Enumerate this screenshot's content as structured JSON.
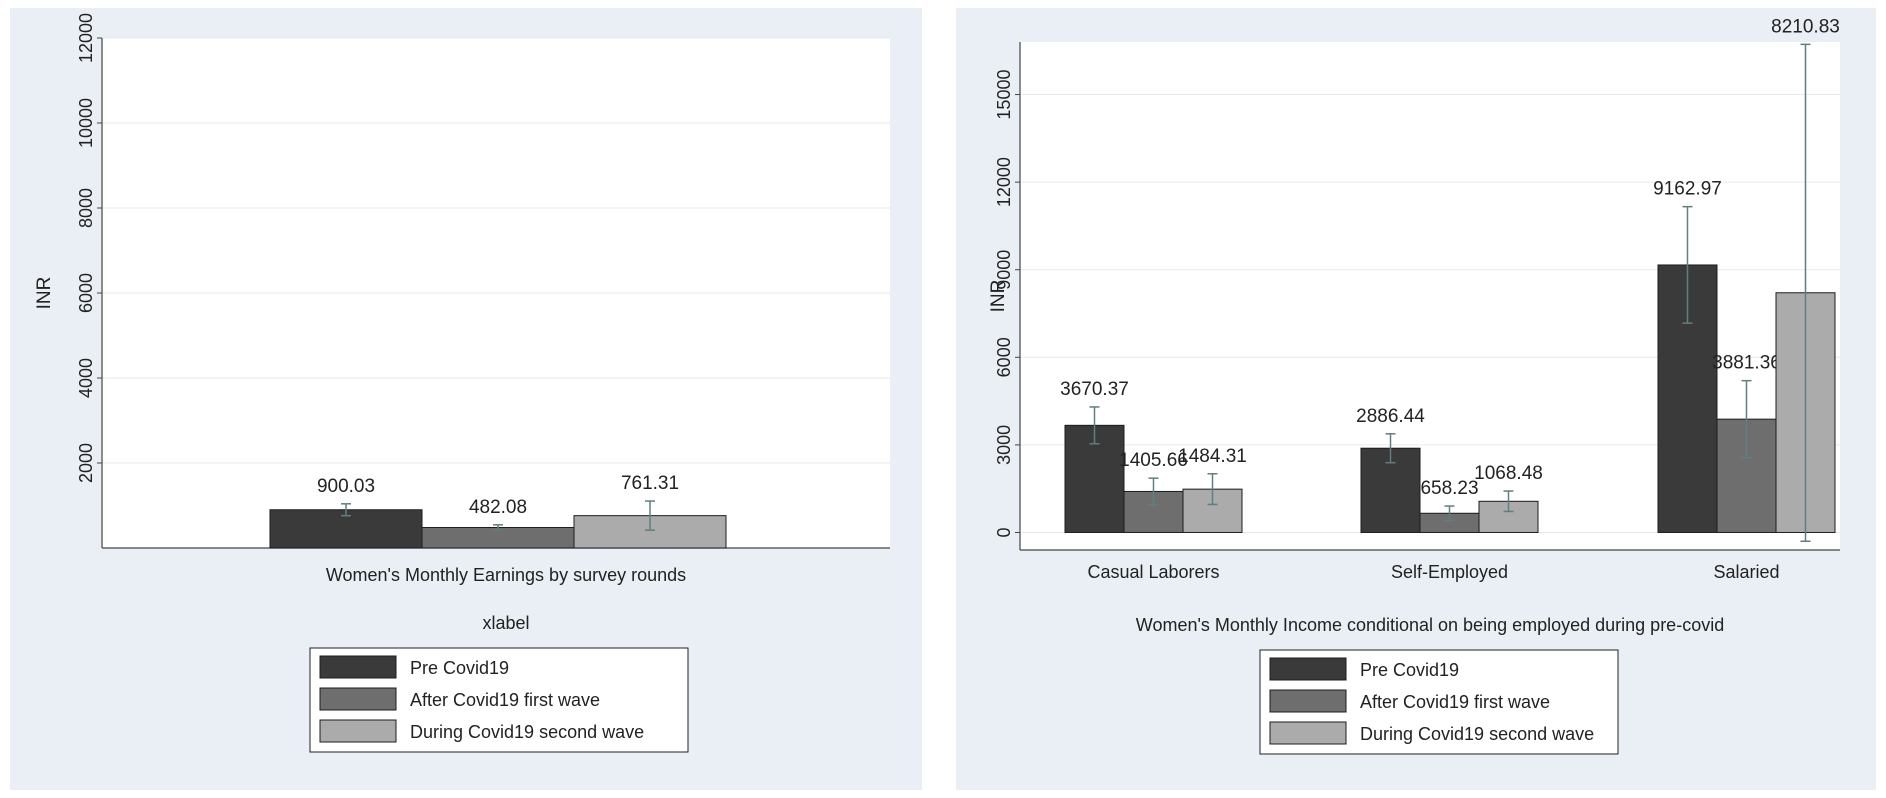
{
  "chart_data": [
    {
      "type": "bar",
      "title": "",
      "xlabel": "Women's Monthly Earnings by survey rounds",
      "secondary_label": "xlabel",
      "ylabel": "INR",
      "ylim": [
        0,
        12000
      ],
      "yticks": [
        2000,
        4000,
        6000,
        8000,
        10000,
        12000
      ],
      "categories": [
        ""
      ],
      "series": [
        {
          "name": "Pre Covid19",
          "values": [
            900.03
          ],
          "labels": [
            "900.03"
          ],
          "ci": [
            [
              760,
              1040
            ]
          ],
          "color": "#3a3a3a"
        },
        {
          "name": "After Covid19 first wave",
          "values": [
            482.08
          ],
          "labels": [
            "482.08"
          ],
          "ci": [
            [
              420,
              545
            ]
          ],
          "color": "#6e6e6e"
        },
        {
          "name": "During Covid19 second wave",
          "values": [
            761.31
          ],
          "labels": [
            "761.31"
          ],
          "ci": [
            [
              420,
              1105
            ]
          ],
          "color": "#ababab"
        }
      ],
      "grid": true,
      "legend_position": "bottom"
    },
    {
      "type": "bar",
      "title": "",
      "xlabel": "Women's Monthly Income conditional on being employed during pre-covid",
      "ylabel": "INR",
      "ylim": [
        -600,
        16800
      ],
      "yticks": [
        0,
        3000,
        6000,
        9000,
        12000,
        15000
      ],
      "categories": [
        "Casual Laborers",
        "Self-Employed",
        "Salaried"
      ],
      "series": [
        {
          "name": "Pre Covid19",
          "values": [
            3670.37,
            2886.44,
            9162.97
          ],
          "labels": [
            "3670.37",
            "2886.44",
            "9162.97"
          ],
          "ci": [
            [
              3040,
              4300
            ],
            [
              2390,
              3380
            ],
            [
              7170,
              11160
            ]
          ],
          "color": "#3a3a3a"
        },
        {
          "name": "After Covid19 first wave",
          "values": [
            1405.66,
            658.23,
            3881.36
          ],
          "labels": [
            "1405.66",
            "658.23",
            "3881.36"
          ],
          "ci": [
            [
              950,
              1860
            ],
            [
              410,
              905
            ],
            [
              2560,
              5200
            ]
          ],
          "color": "#6e6e6e"
        },
        {
          "name": "During Covid19 second wave",
          "values": [
            1484.31,
            1068.48,
            8210.83
          ],
          "labels": [
            "1484.31",
            "1068.48",
            "8210.83"
          ],
          "ci": [
            [
              960,
              2010
            ],
            [
              720,
              1420
            ],
            [
              -300,
              16720
            ]
          ],
          "color": "#ababab"
        }
      ],
      "grid": true,
      "legend_position": "bottom"
    }
  ]
}
